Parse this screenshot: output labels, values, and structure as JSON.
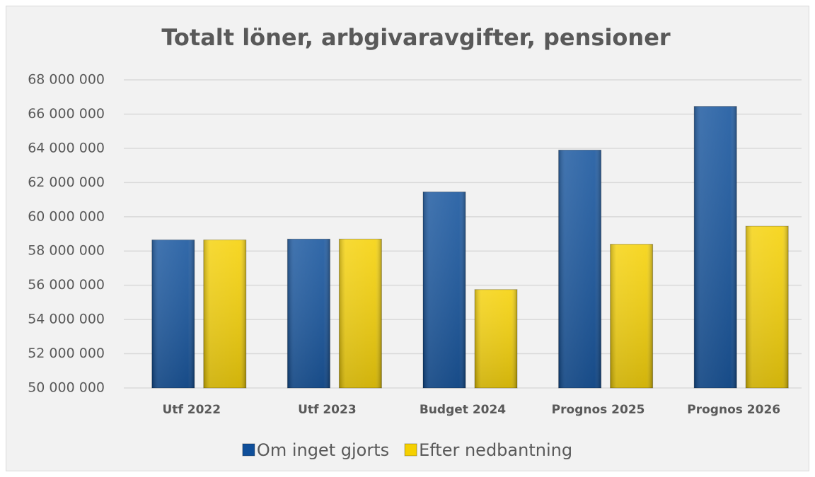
{
  "chart_data": {
    "type": "bar",
    "title": "Totalt löner, arbgivaravgifter, pensioner",
    "categories": [
      "Utf 2022",
      "Utf 2023",
      "Budget 2024",
      "Prognos 2025",
      "Prognos 2026"
    ],
    "series": [
      {
        "name": "Om inget gjorts",
        "color": "#0f4f9a",
        "values": [
          58650000,
          58700000,
          61450000,
          63900000,
          66450000
        ]
      },
      {
        "name": "Efter nedbantning",
        "color": "#f5d000",
        "values": [
          58650000,
          58700000,
          55750000,
          58400000,
          59450000
        ]
      }
    ],
    "ylim": [
      50000000,
      68000000
    ],
    "yticks": [
      {
        "value": 50000000,
        "label": "50 000 000"
      },
      {
        "value": 52000000,
        "label": "52 000 000"
      },
      {
        "value": 54000000,
        "label": "54 000 000"
      },
      {
        "value": 56000000,
        "label": "56 000 000"
      },
      {
        "value": 58000000,
        "label": "58 000 000"
      },
      {
        "value": 60000000,
        "label": "60 000 000"
      },
      {
        "value": 62000000,
        "label": "62 000 000"
      },
      {
        "value": 64000000,
        "label": "64 000 000"
      },
      {
        "value": 66000000,
        "label": "66 000 000"
      },
      {
        "value": 68000000,
        "label": "68 000 000"
      }
    ],
    "grid": true,
    "legend": "bottom"
  }
}
